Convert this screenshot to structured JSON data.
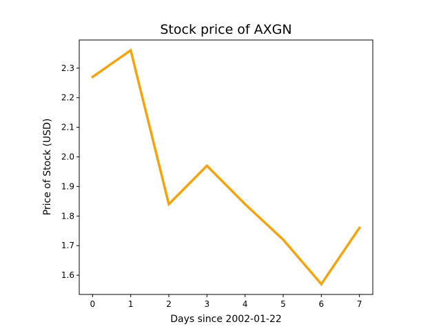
{
  "chart_data": {
    "type": "line",
    "title": "Stock price of AXGN",
    "xlabel": "Days since 2002-01-22",
    "ylabel": "Price of Stock (USD)",
    "x": [
      0,
      1,
      2,
      3,
      4,
      5,
      6,
      7
    ],
    "series": [
      {
        "values": [
          2.27,
          2.36,
          1.84,
          1.97,
          1.84,
          1.72,
          1.57,
          1.76
        ],
        "color": "#f5a30a"
      }
    ],
    "xticks": [
      "0",
      "1",
      "2",
      "3",
      "4",
      "5",
      "6",
      "7"
    ],
    "yticks": [
      "1.6",
      "1.7",
      "1.8",
      "1.9",
      "2.0",
      "2.1",
      "2.2",
      "2.3"
    ],
    "xlim": [
      -0.35,
      7.35
    ],
    "ylim": [
      1.535,
      2.395
    ],
    "grid": false,
    "legend": "none"
  }
}
